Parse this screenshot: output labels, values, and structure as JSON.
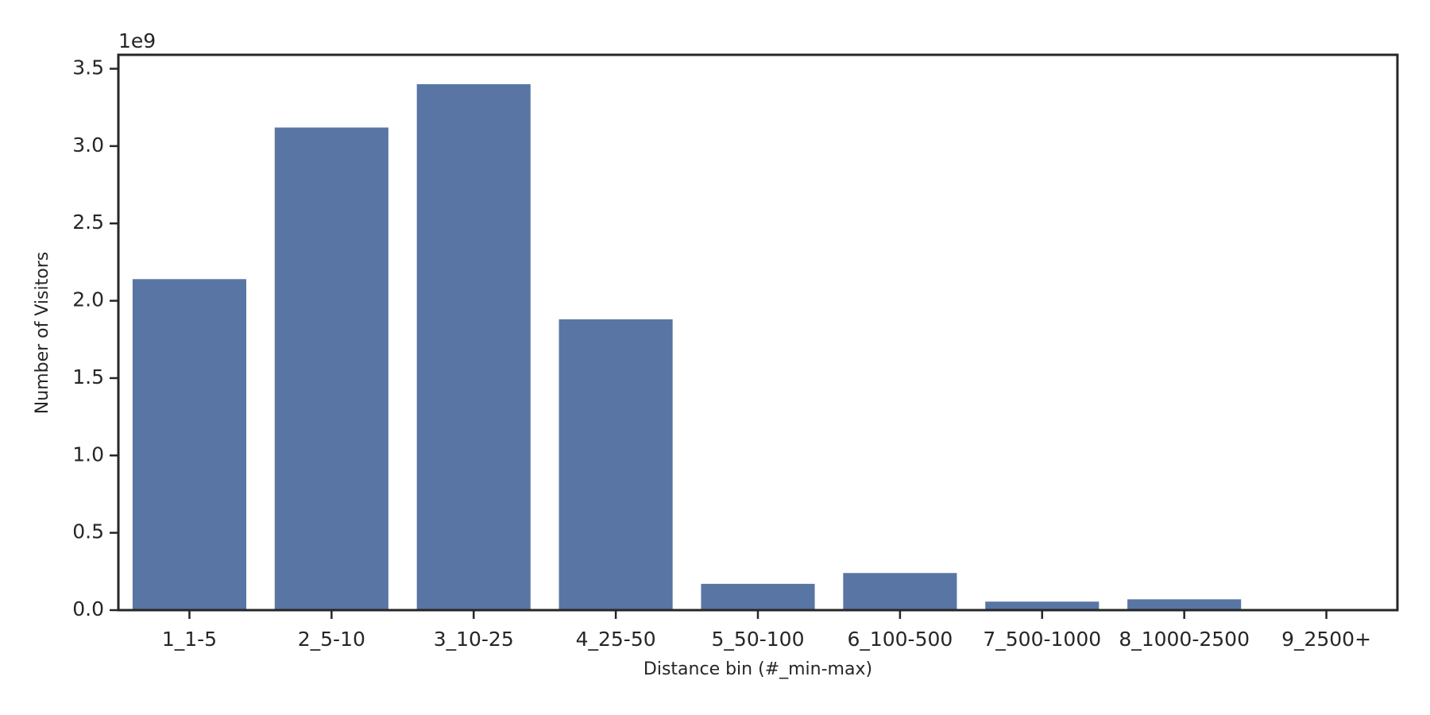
{
  "chart_data": {
    "type": "bar",
    "x_label": "Distance bin (#_min-max)",
    "y_label": "Number of Visitors",
    "y_offset_label": "1e9",
    "categories": [
      "1_1-5",
      "2_5-10",
      "3_10-25",
      "4_25-50",
      "5_50-100",
      "6_100-500",
      "7_500-1000",
      "8_1000-2500",
      "9_2500+"
    ],
    "values": [
      2.14,
      3.12,
      3.4,
      1.88,
      0.17,
      0.24,
      0.055,
      0.07,
      0
    ],
    "color": "#5975a4",
    "ylim": [
      0,
      3.59
    ],
    "yticks": [
      {
        "value": 0,
        "label": "0.0"
      },
      0.5,
      {
        "value": 1,
        "label": "1.0"
      },
      1.5,
      {
        "value": 2,
        "label": "2.0"
      },
      2.5,
      {
        "value": 3,
        "label": "3.0"
      },
      3.5
    ],
    "grid": false
  }
}
